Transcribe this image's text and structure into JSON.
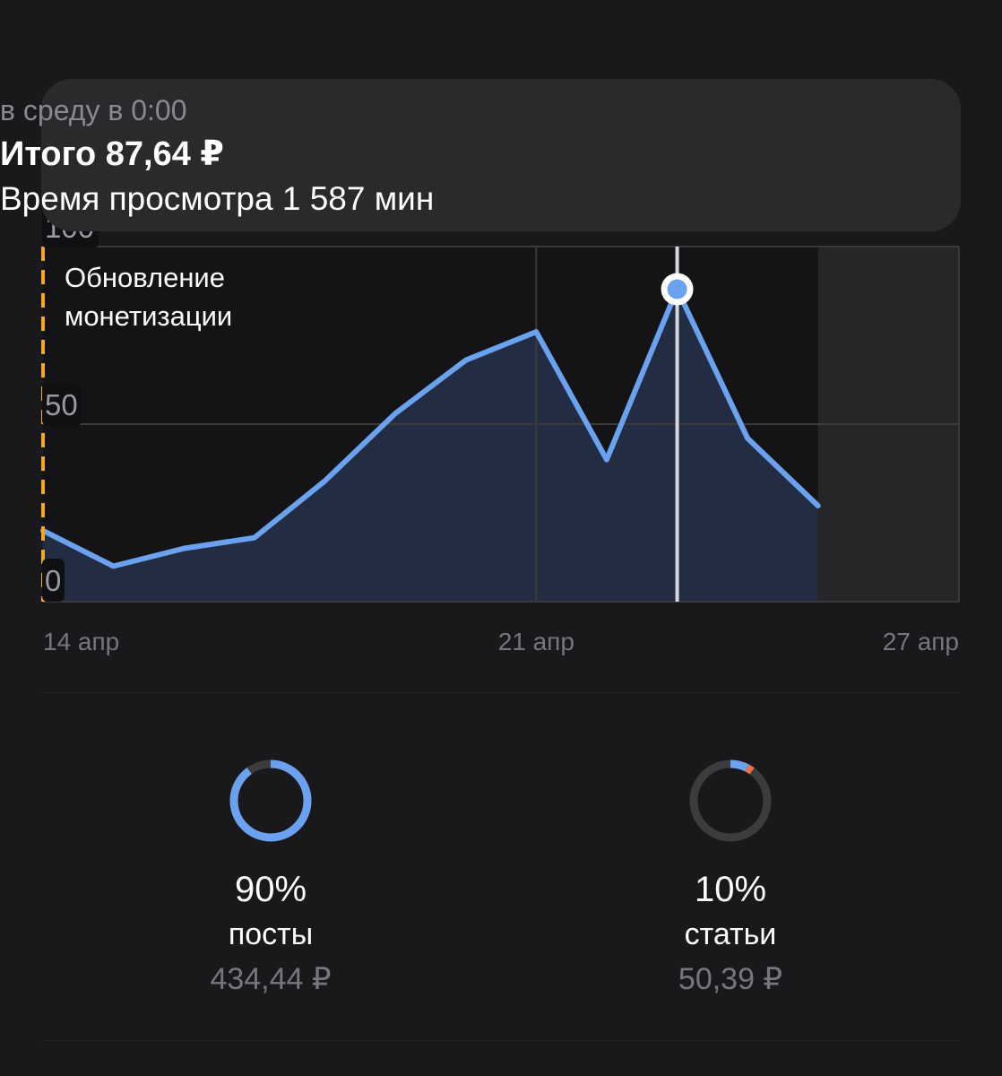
{
  "tooltip": {
    "date": "в среду в 0:00",
    "total": "Итого 87,64 ₽",
    "views": "Время просмотра 1 587 мин"
  },
  "annotation": {
    "line1": "Обновление",
    "line2": "монетизации"
  },
  "colors": {
    "line": "#6aa2f0",
    "annotation_marker": "#f5a623",
    "articles_accent": "#e8704a",
    "ring_track": "#3c3c3e"
  },
  "chart_data": {
    "type": "area",
    "y_ticks": [
      "100",
      "50",
      "0"
    ],
    "ylim": [
      0,
      100
    ],
    "x_tick_labels": [
      "14 апр",
      "21 апр",
      "27 апр"
    ],
    "x_tick_days": [
      0,
      7,
      13
    ],
    "xlim": [
      0,
      13
    ],
    "series": [
      {
        "x": [
          0,
          1,
          2,
          3,
          4,
          5,
          6,
          7,
          8,
          9,
          10,
          11
        ],
        "values": [
          20,
          10,
          15,
          18,
          34,
          53,
          68,
          76,
          40,
          88,
          46,
          27
        ]
      }
    ],
    "highlight_index": 9,
    "future_shaded_from": 11,
    "grid": true
  },
  "breakdown": [
    {
      "percent": "90%",
      "label": "посты",
      "amount": "434,44 ₽",
      "fraction": 0.9
    },
    {
      "percent": "10%",
      "label": "статьи",
      "amount": "50,39 ₽",
      "fraction": 0.1
    }
  ]
}
